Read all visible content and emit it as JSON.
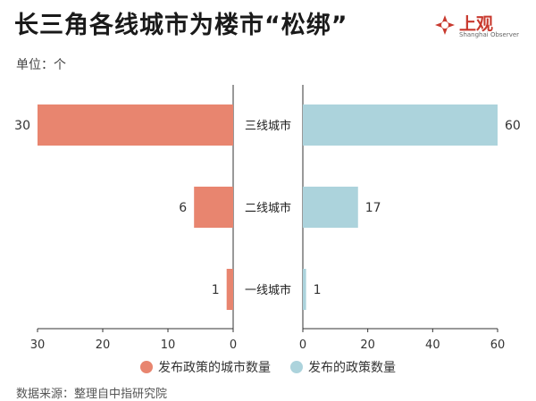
{
  "header": {
    "title": "长三角各线城市为楼市“松绑”",
    "unit": "单位：个",
    "logo_text": "上观",
    "logo_sub": "Shanghai Observer"
  },
  "colors": {
    "left": "#e8856f",
    "right": "#acd3dc",
    "logo": "#c8392e"
  },
  "chart_data": {
    "type": "bar",
    "orientation": "horizontal-butterfly",
    "categories": [
      "三线城市",
      "二线城市",
      "一线城市"
    ],
    "series": [
      {
        "name": "发布政策的城市数量",
        "values": [
          30,
          6,
          1
        ],
        "side": "left",
        "xlim": [
          30,
          0
        ],
        "ticks": [
          30,
          20,
          10,
          0
        ]
      },
      {
        "name": "发布的政策数量",
        "values": [
          60,
          17,
          1
        ],
        "side": "right",
        "xlim": [
          0,
          60
        ],
        "ticks": [
          0,
          20,
          40,
          60
        ]
      }
    ],
    "title": "长三角各线城市为楼市“松绑”",
    "legend_position": "bottom"
  },
  "footer": {
    "source": "数据来源：整理自中指研究院"
  }
}
